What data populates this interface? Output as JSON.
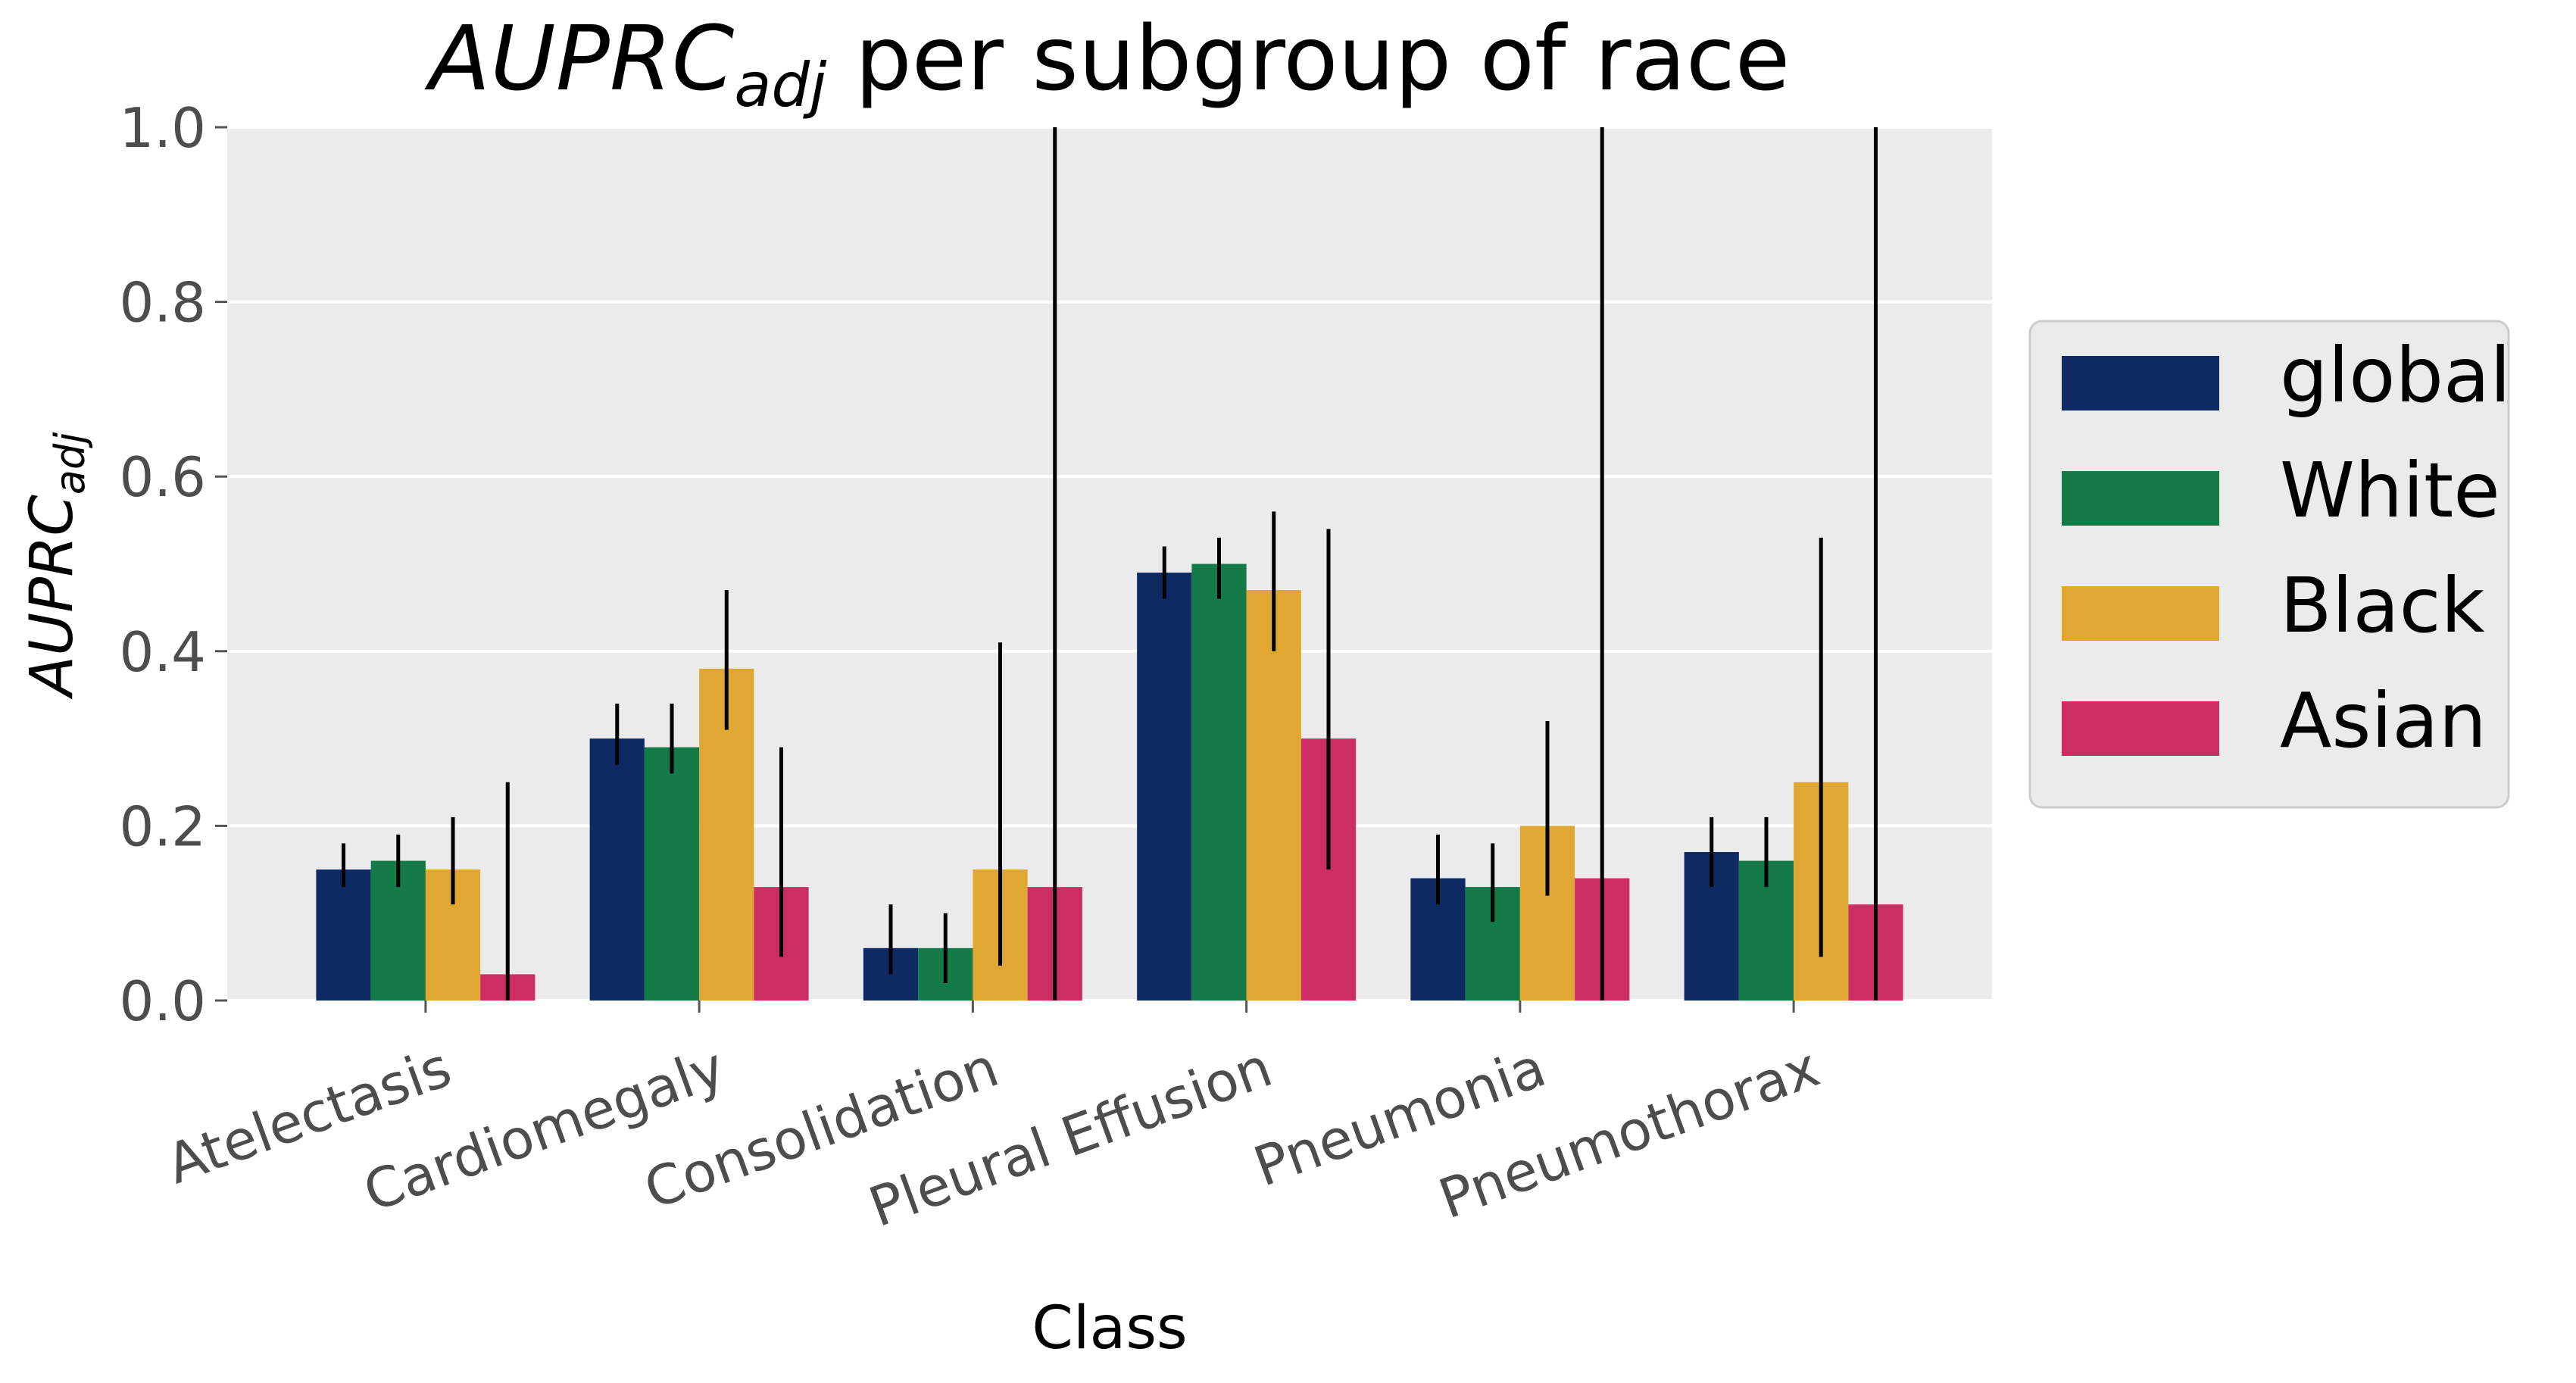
{
  "chart_data": {
    "type": "bar",
    "title": {
      "main": "AUPRC",
      "sub": "adj",
      "rest": " per subgroup of race"
    },
    "xlabel": "Class",
    "ylabel": {
      "main": "AUPRC",
      "sub": "adj"
    },
    "ylim": [
      0,
      1
    ],
    "yticks": [
      "0.0",
      "0.2",
      "0.4",
      "0.6",
      "0.8",
      "1.0"
    ],
    "grid": true,
    "legend_position": "right",
    "categories": [
      "Atelectasis",
      "Cardiomegaly",
      "Consolidation",
      "Pleural Effusion",
      "Pneumonia",
      "Pneumothorax"
    ],
    "series": [
      {
        "name": "global",
        "color": "#0f2a62",
        "values": [
          0.15,
          0.3,
          0.06,
          0.49,
          0.14,
          0.17
        ],
        "err_low": [
          0.13,
          0.27,
          0.03,
          0.46,
          0.11,
          0.13
        ],
        "err_high": [
          0.18,
          0.34,
          0.11,
          0.52,
          0.19,
          0.21
        ]
      },
      {
        "name": "White",
        "color": "#137a48",
        "values": [
          0.16,
          0.29,
          0.06,
          0.5,
          0.13,
          0.16
        ],
        "err_low": [
          0.13,
          0.26,
          0.02,
          0.46,
          0.09,
          0.13
        ],
        "err_high": [
          0.19,
          0.34,
          0.1,
          0.53,
          0.18,
          0.21
        ]
      },
      {
        "name": "Black",
        "color": "#e0a833",
        "values": [
          0.15,
          0.38,
          0.15,
          0.47,
          0.2,
          0.25
        ],
        "err_low": [
          0.11,
          0.31,
          0.04,
          0.4,
          0.12,
          0.05
        ],
        "err_high": [
          0.21,
          0.47,
          0.41,
          0.56,
          0.32,
          0.53
        ]
      },
      {
        "name": "Asian",
        "color": "#cc2e64",
        "values": [
          0.03,
          0.13,
          0.13,
          0.3,
          0.14,
          0.11
        ],
        "err_low": [
          0.0,
          0.05,
          0.0,
          0.15,
          0.0,
          0.0
        ],
        "err_high": [
          0.25,
          0.29,
          1.0,
          0.54,
          1.0,
          1.0
        ]
      }
    ]
  }
}
